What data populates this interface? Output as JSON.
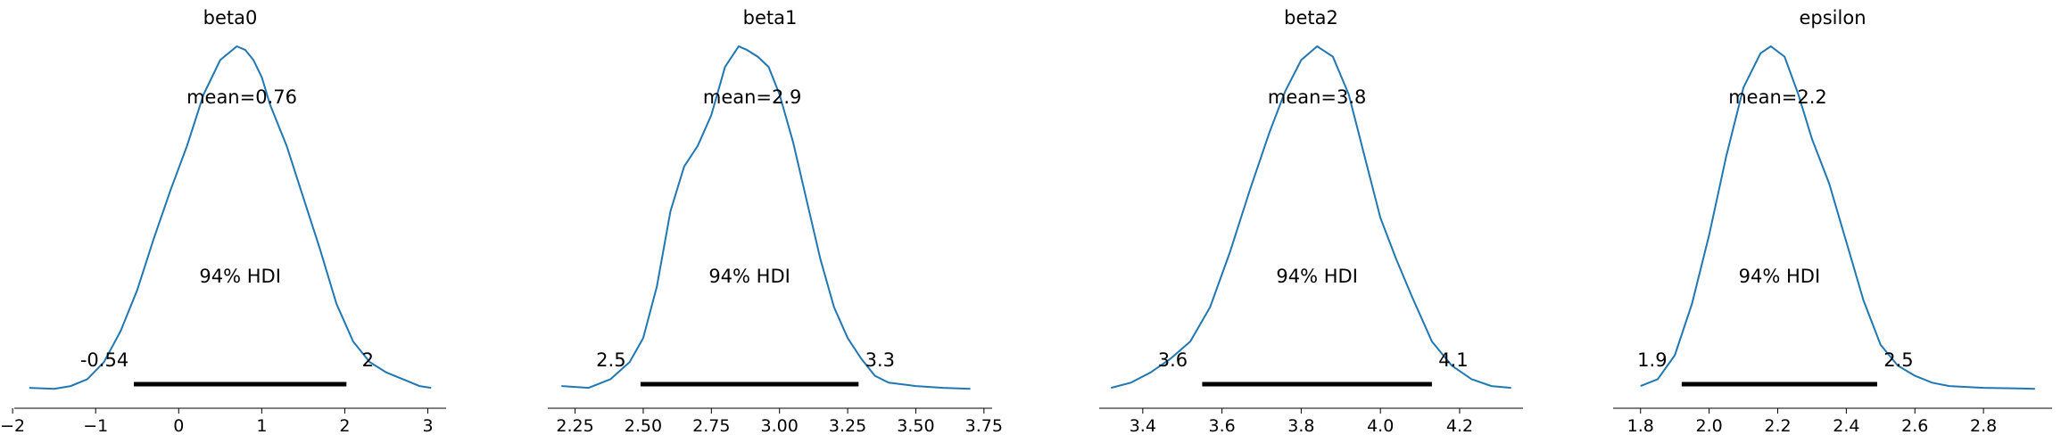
{
  "chart_data": [
    {
      "type": "line",
      "title": "beta0",
      "mean_label": "mean=0.76",
      "hdi_label": "94% HDI",
      "hdi_low_label": "-0.54",
      "hdi_high_label": "2",
      "mean": 0.76,
      "hdi": [
        -0.54,
        2.02
      ],
      "xlim": [
        -1.98,
        3.22
      ],
      "ylim": [
        0,
        1.0
      ],
      "xticks": [
        -2,
        -1,
        0,
        1,
        2,
        3
      ],
      "xtick_labels": [
        "−2",
        "−1",
        "0",
        "1",
        "2",
        "3"
      ],
      "grid": false,
      "series": [
        {
          "x": [
            -1.8,
            -1.5,
            -1.3,
            -1.1,
            -0.9,
            -0.7,
            -0.5,
            -0.3,
            -0.1,
            0.1,
            0.3,
            0.5,
            0.7,
            0.8,
            0.9,
            1.0,
            1.1,
            1.3,
            1.5,
            1.7,
            1.9,
            2.1,
            2.3,
            2.5,
            2.7,
            2.9,
            3.04
          ],
          "y": [
            0.005,
            0.002,
            0.01,
            0.03,
            0.08,
            0.17,
            0.29,
            0.44,
            0.58,
            0.71,
            0.86,
            0.96,
            1.0,
            0.99,
            0.96,
            0.91,
            0.83,
            0.71,
            0.56,
            0.41,
            0.25,
            0.14,
            0.08,
            0.05,
            0.03,
            0.01,
            0.005
          ]
        }
      ]
    },
    {
      "type": "line",
      "title": "beta1",
      "mean_label": "mean=2.9",
      "hdi_label": "94% HDI",
      "hdi_low_label": "2.5",
      "hdi_high_label": "3.3",
      "mean": 2.9,
      "hdi": [
        2.49,
        3.29
      ],
      "xlim": [
        2.15,
        3.78
      ],
      "ylim": [
        0,
        1.0
      ],
      "xticks": [
        2.25,
        2.5,
        2.75,
        3.0,
        3.25,
        3.5,
        3.75
      ],
      "xtick_labels": [
        "2.25",
        "2.50",
        "2.75",
        "3.00",
        "3.25",
        "3.50",
        "3.75"
      ],
      "grid": false,
      "series": [
        {
          "x": [
            2.2,
            2.3,
            2.38,
            2.45,
            2.5,
            2.55,
            2.6,
            2.65,
            2.7,
            2.75,
            2.8,
            2.85,
            2.88,
            2.92,
            2.96,
            3.0,
            3.05,
            3.1,
            3.15,
            3.2,
            3.25,
            3.3,
            3.35,
            3.4,
            3.5,
            3.6,
            3.7
          ],
          "y": [
            0.01,
            0.005,
            0.03,
            0.08,
            0.15,
            0.3,
            0.52,
            0.65,
            0.71,
            0.8,
            0.94,
            1.0,
            0.99,
            0.97,
            0.94,
            0.86,
            0.72,
            0.55,
            0.38,
            0.24,
            0.15,
            0.09,
            0.04,
            0.02,
            0.01,
            0.005,
            0.002
          ]
        }
      ]
    },
    {
      "type": "line",
      "title": "beta2",
      "mean_label": "mean=3.8",
      "hdi_label": "94% HDI",
      "hdi_low_label": "3.6",
      "hdi_high_label": "4.1",
      "mean": 3.84,
      "hdi": [
        3.55,
        4.13
      ],
      "xlim": [
        3.29,
        4.36
      ],
      "ylim": [
        0,
        1.0
      ],
      "xticks": [
        3.4,
        3.6,
        3.8,
        4.0,
        4.2
      ],
      "xtick_labels": [
        "3.4",
        "3.6",
        "3.8",
        "4.0",
        "4.2"
      ],
      "grid": false,
      "series": [
        {
          "x": [
            3.32,
            3.37,
            3.42,
            3.47,
            3.52,
            3.57,
            3.62,
            3.67,
            3.72,
            3.76,
            3.8,
            3.84,
            3.88,
            3.92,
            3.96,
            4.0,
            4.04,
            4.08,
            4.13,
            4.18,
            4.23,
            4.28,
            4.33
          ],
          "y": [
            0.005,
            0.02,
            0.05,
            0.09,
            0.14,
            0.24,
            0.4,
            0.58,
            0.75,
            0.87,
            0.96,
            1.0,
            0.97,
            0.86,
            0.68,
            0.5,
            0.38,
            0.27,
            0.14,
            0.07,
            0.03,
            0.01,
            0.005
          ]
        }
      ]
    },
    {
      "type": "line",
      "title": "epsilon",
      "mean_label": "mean=2.2",
      "hdi_label": "94% HDI",
      "hdi_low_label": "1.9",
      "hdi_high_label": "2.5",
      "mean": 2.2,
      "hdi": [
        1.92,
        2.49
      ],
      "xlim": [
        1.72,
        3.0
      ],
      "ylim": [
        0,
        1.0
      ],
      "xticks": [
        1.8,
        2.0,
        2.2,
        2.4,
        2.6,
        2.8
      ],
      "xtick_labels": [
        "1.8",
        "2.0",
        "2.2",
        "2.4",
        "2.6",
        "2.8"
      ],
      "grid": false,
      "series": [
        {
          "x": [
            1.8,
            1.85,
            1.9,
            1.95,
            2.0,
            2.05,
            2.1,
            2.15,
            2.18,
            2.22,
            2.26,
            2.3,
            2.35,
            2.4,
            2.45,
            2.5,
            2.55,
            2.6,
            2.65,
            2.7,
            2.8,
            2.9,
            2.95
          ],
          "y": [
            0.01,
            0.03,
            0.1,
            0.25,
            0.45,
            0.68,
            0.88,
            0.98,
            1.0,
            0.97,
            0.86,
            0.73,
            0.6,
            0.43,
            0.26,
            0.13,
            0.07,
            0.04,
            0.02,
            0.01,
            0.005,
            0.003,
            0.002
          ]
        }
      ]
    }
  ]
}
